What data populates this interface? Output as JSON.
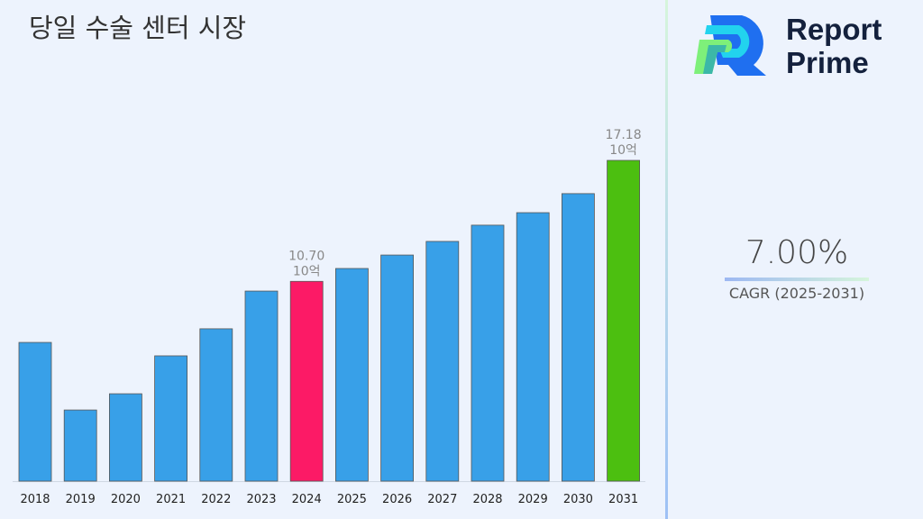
{
  "title": "당일 수술 센터 시장",
  "logo": {
    "line1": "Report",
    "line2": "Prime"
  },
  "cagr": {
    "value": "7.00%",
    "label": "CAGR (2025-2031)"
  },
  "chart_data": {
    "type": "bar",
    "title": "당일 수술 센터 시장",
    "categories": [
      "2018",
      "2019",
      "2020",
      "2021",
      "2022",
      "2023",
      "2024",
      "2025",
      "2026",
      "2027",
      "2028",
      "2029",
      "2030",
      "2031"
    ],
    "values": [
      7.43,
      3.81,
      4.68,
      6.71,
      8.16,
      10.18,
      10.7,
      11.39,
      12.11,
      12.84,
      13.71,
      14.38,
      15.4,
      17.18
    ],
    "unit": "10억",
    "data_labels": {
      "2024": [
        "10.70",
        "10억"
      ],
      "2031": [
        "17.18",
        "10억"
      ]
    },
    "colors": {
      "default": "#38a0e8",
      "2024": "#fc1a66",
      "2031": "#4cbf10"
    },
    "ylim": [
      0,
      17.18
    ],
    "grid": false
  }
}
